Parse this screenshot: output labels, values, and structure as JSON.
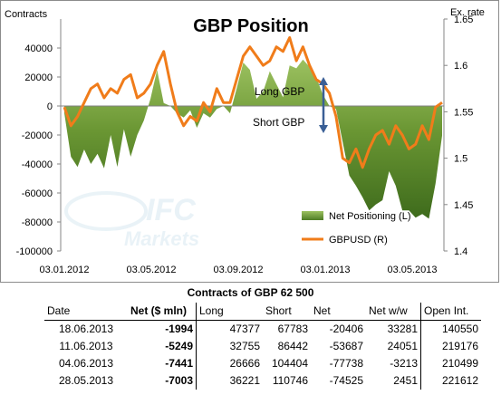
{
  "chart_data": {
    "type": "area+line",
    "title": "GBP Position",
    "ylabel_left": "Contracts",
    "ylabel_right": "Ex. rate",
    "ylim_left": [
      -100000,
      60000
    ],
    "yticks_left": [
      "40000",
      "20000",
      "0",
      "-20000",
      "-40000",
      "-60000",
      "-80000",
      "-100000"
    ],
    "ylim_right": [
      1.4,
      1.65
    ],
    "yticks_right": [
      "1.65",
      "1.6",
      "1.55",
      "1.5",
      "1.45",
      "1.4"
    ],
    "x_ticks": [
      "03.01.2012",
      "03.05.2012",
      "03.09.2012",
      "03.01.2013",
      "03.05.2013"
    ],
    "legend": [
      "Net Positioning (L)",
      "GBPUSD (R)"
    ],
    "annotations": {
      "long": "Long GBP",
      "short": "Short GBP"
    },
    "colors": {
      "net": "#77a041",
      "net_dark": "#3e6b1c",
      "gbpusd": "#f07c1a",
      "arrow": "#3a5f96"
    },
    "series": [
      {
        "name": "Net Positioning (L)",
        "values": [
          -5000,
          -35000,
          -42000,
          -30000,
          -40000,
          -33000,
          -43000,
          -20000,
          -42000,
          -16000,
          -35000,
          -20000,
          -10000,
          5000,
          25000,
          2000,
          0,
          -5000,
          -8000,
          -3000,
          -15000,
          -5000,
          -8000,
          -2000,
          0,
          -5000,
          12000,
          30000,
          25000,
          5000,
          10000,
          24000,
          15000,
          6000,
          28000,
          26000,
          32000,
          27000,
          20000,
          8000,
          0,
          -2000,
          -25000,
          -48000,
          -55000,
          -63000,
          -72000,
          -68000,
          -65000,
          -45000,
          -55000,
          -72000,
          -72000,
          -77000,
          -74525,
          -77738,
          -53687,
          -20406
        ]
      },
      {
        "name": "GBPUSD (R)",
        "values": [
          1.555,
          1.535,
          1.545,
          1.56,
          1.575,
          1.58,
          1.565,
          1.575,
          1.57,
          1.585,
          1.59,
          1.565,
          1.57,
          1.58,
          1.6,
          1.615,
          1.58,
          1.55,
          1.535,
          1.545,
          1.54,
          1.56,
          1.55,
          1.575,
          1.56,
          1.56,
          1.585,
          1.61,
          1.62,
          1.61,
          1.6,
          1.605,
          1.62,
          1.615,
          1.63,
          1.605,
          1.62,
          1.6,
          1.585,
          1.58,
          1.57,
          1.545,
          1.5,
          1.495,
          1.51,
          1.49,
          1.51,
          1.525,
          1.53,
          1.515,
          1.535,
          1.525,
          1.51,
          1.515,
          1.535,
          1.52,
          1.555,
          1.56
        ]
      }
    ]
  },
  "table": {
    "title": "Contracts of GBP 62 500",
    "headers": [
      "Date",
      "Net ($ mln)",
      "Long",
      "Short",
      "Net",
      "Net w/w",
      "Open Int."
    ],
    "rows": [
      [
        "18.06.2013",
        "-1994",
        "47377",
        "67783",
        "-20406",
        "33281",
        "140550"
      ],
      [
        "11.06.2013",
        "-5249",
        "32755",
        "86442",
        "-53687",
        "24051",
        "219176"
      ],
      [
        "04.06.2013",
        "-7441",
        "26666",
        "104404",
        "-77738",
        "-3213",
        "210499"
      ],
      [
        "28.05.2013",
        "-7003",
        "36221",
        "110746",
        "-74525",
        "2451",
        "221612"
      ]
    ]
  }
}
